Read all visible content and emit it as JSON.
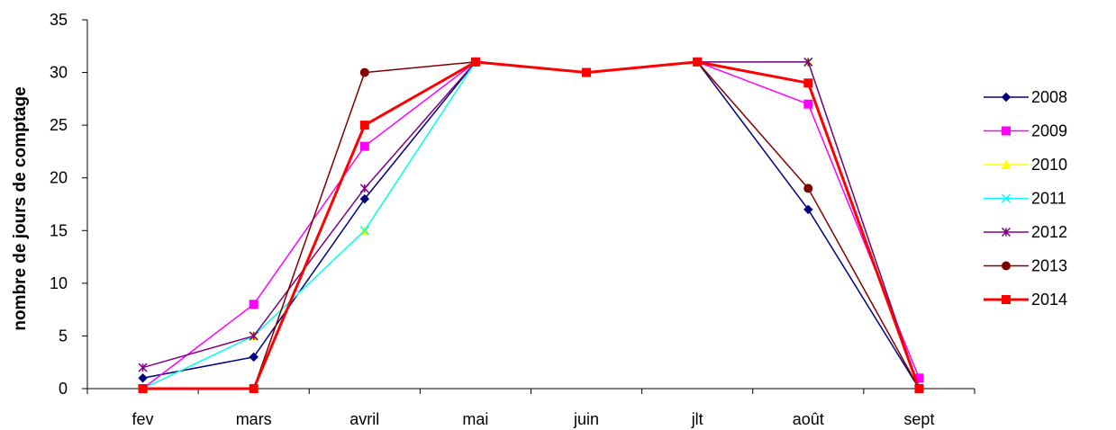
{
  "chart_data": {
    "type": "line",
    "title": "",
    "xlabel": "",
    "ylabel": "nombre de jours de comptage",
    "categories": [
      "fev",
      "mars",
      "avril",
      "mai",
      "juin",
      "jlt",
      "août",
      "sept"
    ],
    "ylim": [
      0,
      35
    ],
    "yticks": [
      0,
      5,
      10,
      15,
      20,
      25,
      30,
      35
    ],
    "grid": false,
    "legend_position": "right",
    "series": [
      {
        "name": "2008",
        "color": "#000080",
        "marker": "diamond",
        "values": [
          1,
          3,
          18,
          31,
          30,
          31,
          17,
          0
        ]
      },
      {
        "name": "2009",
        "color": "#FF00FF",
        "marker": "square",
        "values": [
          0,
          8,
          23,
          31,
          30,
          31,
          27,
          1
        ]
      },
      {
        "name": "2010",
        "color": "#FFFF00",
        "marker": "triangle",
        "values": [
          0,
          5,
          15,
          31,
          30,
          31,
          31,
          0
        ]
      },
      {
        "name": "2011",
        "color": "#00FFFF",
        "marker": "x",
        "values": [
          0,
          5,
          15,
          31,
          30,
          31,
          31,
          0
        ]
      },
      {
        "name": "2012",
        "color": "#800080",
        "marker": "star",
        "values": [
          2,
          5,
          19,
          31,
          30,
          31,
          31,
          0
        ]
      },
      {
        "name": "2013",
        "color": "#800000",
        "marker": "circle",
        "values": [
          0,
          0,
          30,
          31,
          30,
          31,
          19,
          0
        ]
      },
      {
        "name": "2014",
        "color": "#FF0000",
        "marker": "square",
        "bold": true,
        "values": [
          0,
          0,
          25,
          31,
          30,
          31,
          29,
          0
        ]
      }
    ]
  }
}
